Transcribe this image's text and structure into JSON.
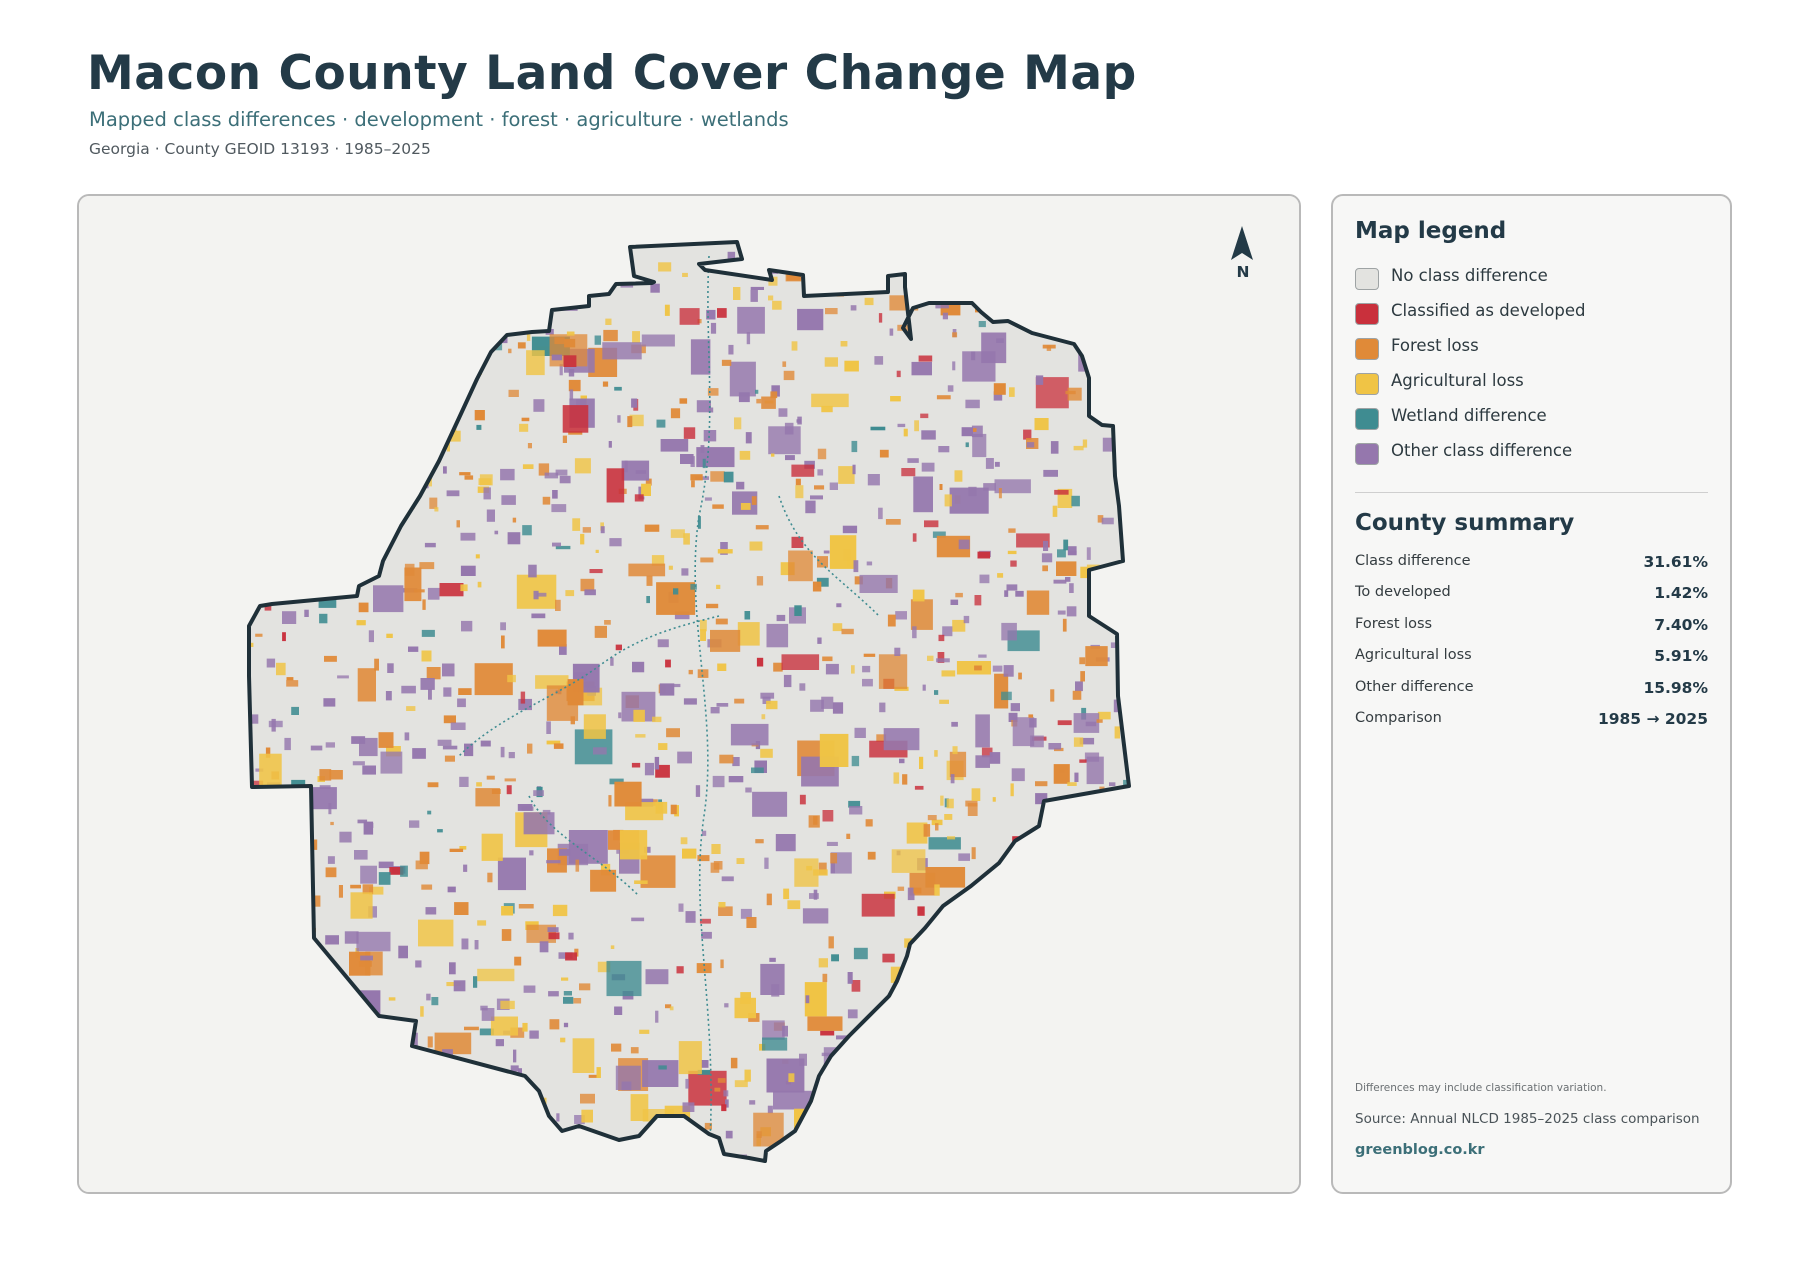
{
  "header": {
    "title": "Macon County Land Cover Change Map",
    "subtitle": "Mapped class differences · development · forest · agriculture · wetlands",
    "meta": "Georgia · County GEOID 13193 · 1985–2025"
  },
  "map": {
    "north_label": "N",
    "colors": {
      "no_change": "#e3e3e0",
      "developed": "#c9303c",
      "forest_loss": "#e08a38",
      "agricultural_loss": "#f0c445",
      "wetland": "#3f8c91",
      "other": "#9577ad",
      "boundary": "#1f3039",
      "background": "#f3f3f1"
    }
  },
  "legend": {
    "title": "Map legend",
    "items": [
      {
        "label": "No class difference",
        "color": "#e3e3e0"
      },
      {
        "label": "Classified as developed",
        "color": "#c9303c"
      },
      {
        "label": "Forest loss",
        "color": "#e08a38"
      },
      {
        "label": "Agricultural loss",
        "color": "#f0c445"
      },
      {
        "label": "Wetland difference",
        "color": "#3f8c91"
      },
      {
        "label": "Other class difference",
        "color": "#9577ad"
      }
    ]
  },
  "summary": {
    "title": "County summary",
    "rows": [
      {
        "label": "Class difference",
        "value": "31.61%"
      },
      {
        "label": "To developed",
        "value": "1.42%"
      },
      {
        "label": "Forest loss",
        "value": "7.40%"
      },
      {
        "label": "Agricultural loss",
        "value": "5.91%"
      },
      {
        "label": "Other difference",
        "value": "15.98%"
      },
      {
        "label": "Comparison",
        "value": "1985 → 2025"
      }
    ]
  },
  "footer": {
    "note": "Differences may include classification variation.",
    "source": "Source: Annual NLCD 1985–2025 class comparison",
    "site": "greenblog.co.kr"
  }
}
